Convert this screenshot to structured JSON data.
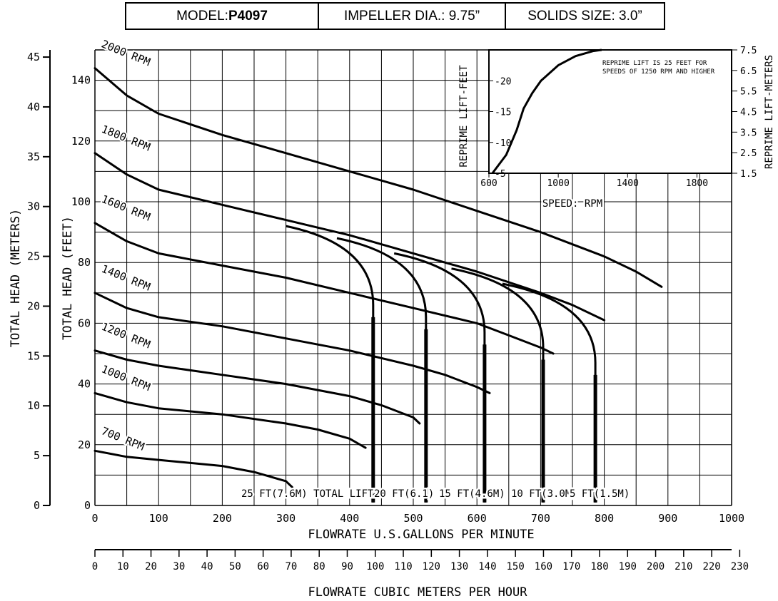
{
  "header": {
    "model_label": "MODEL: ",
    "model_value": "P4097",
    "impeller_label": "IMPELLER DIA.: 9.75”",
    "solids_label": "SOLIDS SIZE: 3.0”"
  },
  "chart_data": [
    {
      "type": "line",
      "title": "",
      "xlabel": "FLOWRATE U.S.GALLONS PER MINUTE",
      "ylabel": "TOTAL HEAD (FEET)",
      "y2label": "TOTAL HEAD (METERS)",
      "x2label": "FLOWRATE CUBIC METERS PER HOUR",
      "xlim": [
        0,
        1000
      ],
      "ylim": [
        0,
        150
      ],
      "y2lim": [
        0,
        45
      ],
      "x2lim": [
        0,
        230
      ],
      "x_ticks": [
        0,
        100,
        200,
        300,
        400,
        500,
        600,
        700,
        800,
        900,
        1000
      ],
      "y_ticks": [
        0,
        20,
        40,
        60,
        80,
        100,
        120,
        140
      ],
      "y2_ticks": [
        0,
        5,
        10,
        15,
        20,
        25,
        30,
        35,
        40,
        45
      ],
      "x2_ticks": [
        0,
        10,
        20,
        30,
        40,
        50,
        60,
        70,
        80,
        90,
        100,
        110,
        120,
        130,
        140,
        150,
        160,
        170,
        180,
        190,
        200,
        210,
        220,
        230
      ],
      "grid": true,
      "series": [
        {
          "name": "2000 RPM",
          "x": [
            0,
            50,
            100,
            200,
            300,
            400,
            500,
            600,
            700,
            800,
            850,
            890
          ],
          "y": [
            144,
            135,
            129,
            122,
            116,
            110,
            104,
            97,
            90,
            82,
            77,
            72
          ]
        },
        {
          "name": "1800 RPM",
          "x": [
            0,
            50,
            100,
            200,
            300,
            400,
            500,
            600,
            700,
            750,
            800
          ],
          "y": [
            116,
            109,
            104,
            99,
            94,
            89,
            83,
            77,
            70,
            66,
            61
          ]
        },
        {
          "name": "1600 RPM",
          "x": [
            0,
            50,
            100,
            200,
            300,
            400,
            500,
            600,
            650,
            700,
            720
          ],
          "y": [
            93,
            87,
            83,
            79,
            75,
            70,
            65,
            60,
            56,
            52,
            50
          ]
        },
        {
          "name": "1400 RPM",
          "x": [
            0,
            50,
            100,
            200,
            300,
            400,
            500,
            550,
            600,
            620
          ],
          "y": [
            70,
            65,
            62,
            59,
            55,
            51,
            46,
            43,
            39,
            37
          ]
        },
        {
          "name": "1200 RPM",
          "x": [
            0,
            50,
            100,
            200,
            300,
            400,
            450,
            500,
            510
          ],
          "y": [
            51,
            48,
            46,
            43,
            40,
            36,
            33,
            29,
            27
          ]
        },
        {
          "name": "1000 RPM",
          "x": [
            0,
            50,
            100,
            200,
            300,
            350,
            400,
            425
          ],
          "y": [
            37,
            34,
            32,
            30,
            27,
            25,
            22,
            19
          ]
        },
        {
          "name": "700 RPM",
          "x": [
            0,
            50,
            100,
            200,
            250,
            300,
            310
          ],
          "y": [
            18,
            16,
            15,
            13,
            11,
            8,
            6
          ]
        }
      ],
      "lift_limits": [
        {
          "label": "25 FT(7.6M) TOTAL LIFT",
          "x": 437
        },
        {
          "label": "20 FT(6.1)",
          "x": 520
        },
        {
          "label": "15 FT(4.6M)",
          "x": 612
        },
        {
          "label": "10 FT(3.0M)",
          "x": 704
        },
        {
          "label": "5 FT(1.5M)",
          "x": 786
        }
      ],
      "rpm_labels": [
        "2000 RPM",
        "1800 RPM",
        "1600 RPM",
        "1400 RPM",
        "1200 RPM",
        "1000 RPM",
        "700 RPM"
      ]
    },
    {
      "type": "line",
      "title": "",
      "xlabel": "SPEED: RPM",
      "ylabel": "REPRIME LIFT-FEET",
      "y2label": "REPRIME LIFT-METERS",
      "xlim": [
        600,
        2000
      ],
      "ylim": [
        5,
        25
      ],
      "x_ticks": [
        600,
        1000,
        1400,
        1800
      ],
      "y_ticks": [
        5,
        10,
        15,
        20
      ],
      "y2_ticks": [
        1.5,
        2.5,
        3.5,
        4.5,
        5.5,
        6.5,
        7.5
      ],
      "annotation": "REPRIME LIFT IS 25 FEET FOR SPEEDS OF 1250 RPM AND HIGHER",
      "series": [
        {
          "name": "",
          "x": [
            620,
            700,
            760,
            800,
            850,
            900,
            1000,
            1100,
            1200,
            1250
          ],
          "y": [
            5,
            8,
            12,
            15.5,
            18,
            20,
            22.5,
            24,
            24.8,
            25
          ]
        }
      ]
    }
  ]
}
